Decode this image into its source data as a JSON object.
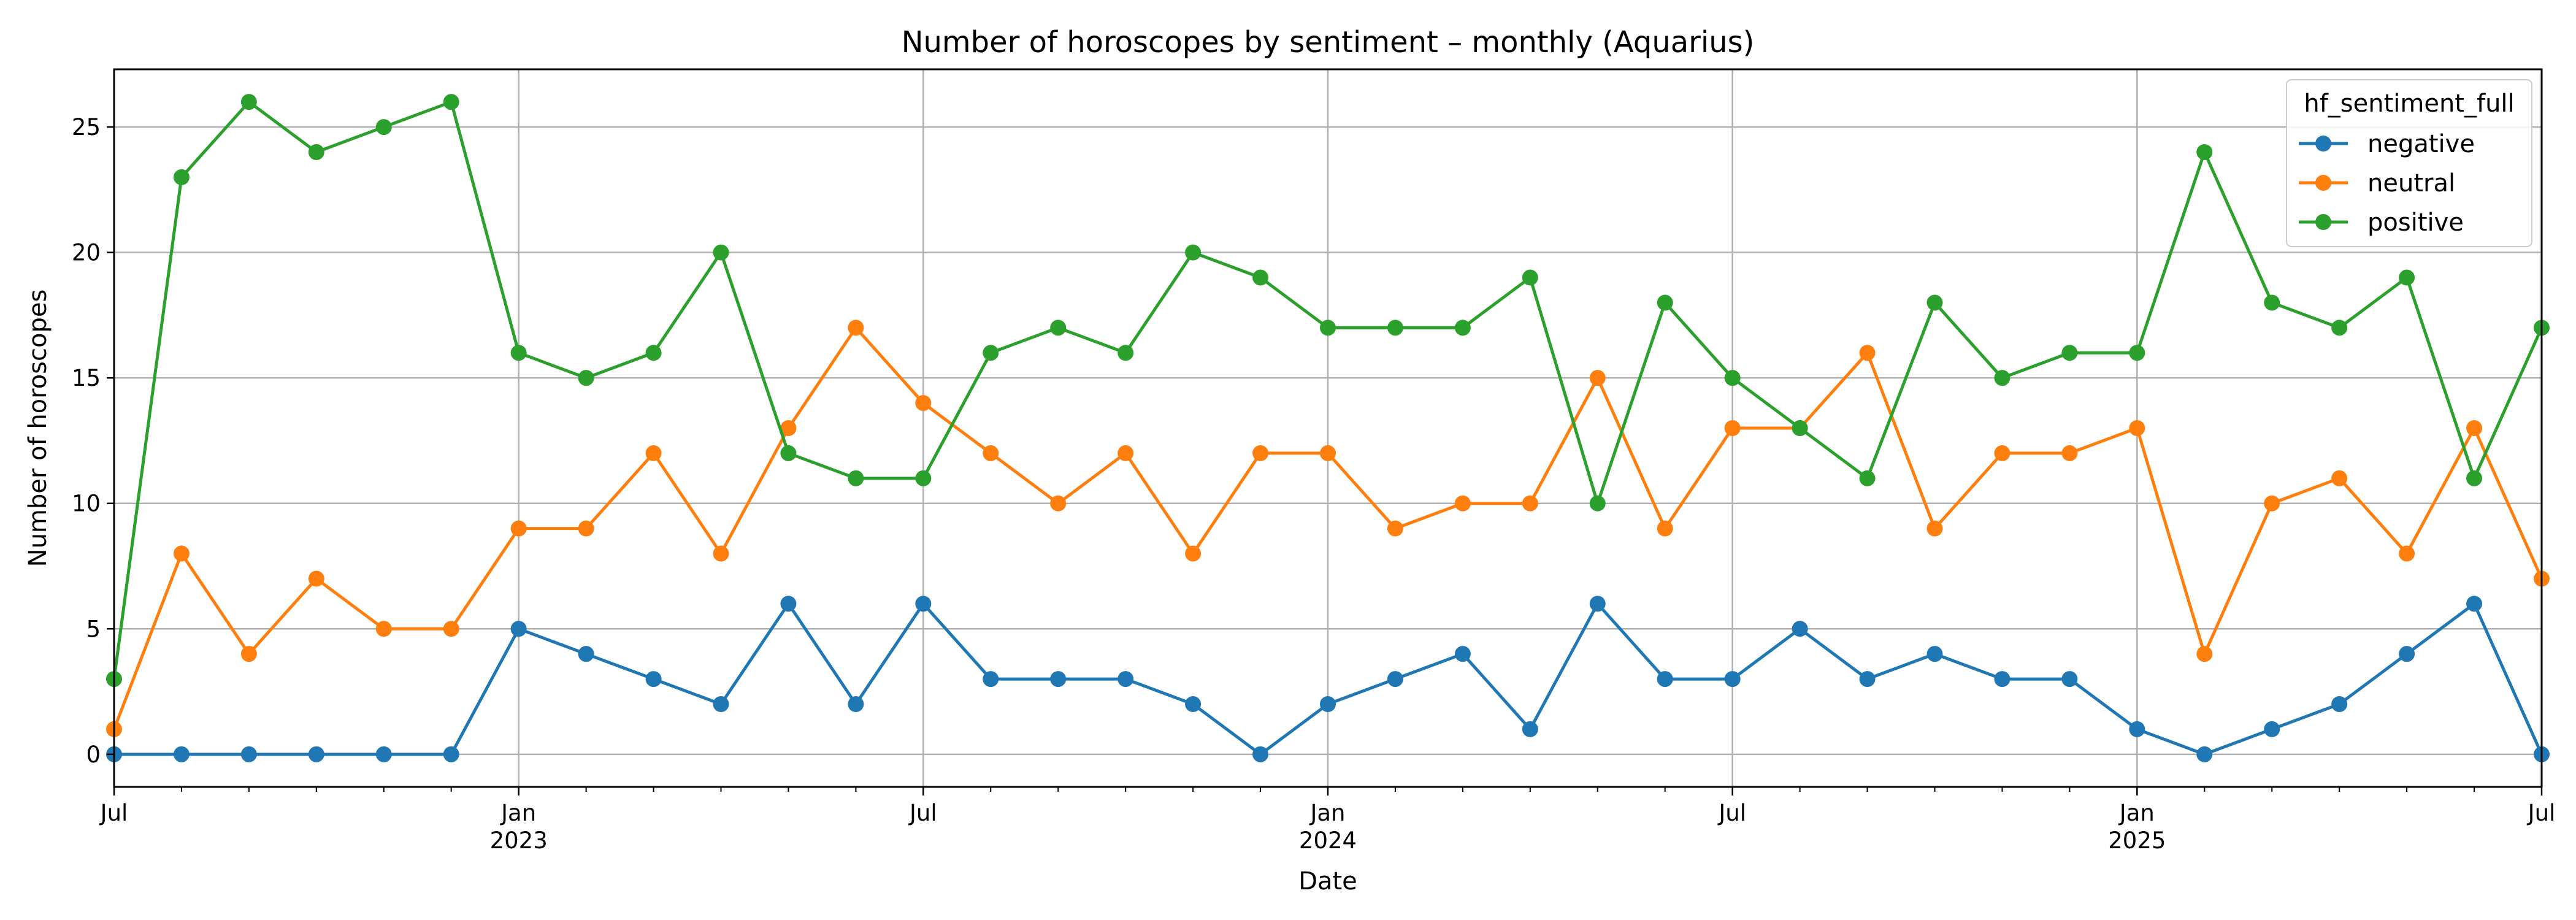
{
  "chart_data": {
    "type": "line",
    "title": "Number of horoscopes by sentiment – monthly (Aquarius)",
    "xlabel": "Date",
    "ylabel": "Number of horoscopes",
    "x": [
      "2022-07",
      "2022-08",
      "2022-09",
      "2022-10",
      "2022-11",
      "2022-12",
      "2023-01",
      "2023-02",
      "2023-03",
      "2023-04",
      "2023-05",
      "2023-06",
      "2023-07",
      "2023-08",
      "2023-09",
      "2023-10",
      "2023-11",
      "2023-12",
      "2024-01",
      "2024-02",
      "2024-03",
      "2024-04",
      "2024-05",
      "2024-06",
      "2024-07",
      "2024-08",
      "2024-09",
      "2024-10",
      "2024-11",
      "2024-12",
      "2025-01",
      "2025-02",
      "2025-03",
      "2025-04",
      "2025-05",
      "2025-06",
      "2025-07"
    ],
    "ylim": [
      -1.3,
      27.3
    ],
    "yticks": [
      0,
      5,
      10,
      15,
      20,
      25
    ],
    "xticks": [
      {
        "x": "2022-07",
        "label": "Jul",
        "year": ""
      },
      {
        "x": "2023-01",
        "label": "Jan",
        "year": "2023"
      },
      {
        "x": "2023-07",
        "label": "Jul",
        "year": ""
      },
      {
        "x": "2024-01",
        "label": "Jan",
        "year": "2024"
      },
      {
        "x": "2024-07",
        "label": "Jul",
        "year": ""
      },
      {
        "x": "2025-01",
        "label": "Jan",
        "year": "2025"
      },
      {
        "x": "2025-07",
        "label": "Jul",
        "year": ""
      }
    ],
    "grid": true,
    "legend": {
      "title": "hf_sentiment_full",
      "placement": "top-right"
    },
    "series": [
      {
        "name": "negative",
        "color": "#1f77b4",
        "values": [
          0,
          0,
          0,
          0,
          0,
          0,
          5,
          4,
          3,
          2,
          6,
          2,
          6,
          3,
          3,
          3,
          2,
          0,
          2,
          3,
          4,
          1,
          6,
          3,
          3,
          5,
          3,
          4,
          3,
          3,
          1,
          0,
          1,
          2,
          4,
          6,
          0
        ]
      },
      {
        "name": "neutral",
        "color": "#ff7f0e",
        "values": [
          1,
          8,
          4,
          7,
          5,
          5,
          9,
          9,
          12,
          8,
          13,
          17,
          14,
          12,
          10,
          12,
          8,
          12,
          12,
          9,
          10,
          10,
          15,
          9,
          13,
          13,
          16,
          9,
          12,
          12,
          13,
          4,
          10,
          11,
          8,
          13,
          7
        ]
      },
      {
        "name": "positive",
        "color": "#2ca02c",
        "values": [
          3,
          23,
          26,
          24,
          25,
          26,
          16,
          15,
          16,
          20,
          12,
          11,
          11,
          16,
          17,
          16,
          20,
          19,
          17,
          17,
          17,
          19,
          10,
          18,
          15,
          13,
          11,
          18,
          15,
          16,
          16,
          24,
          18,
          17,
          19,
          11,
          17
        ]
      }
    ]
  }
}
